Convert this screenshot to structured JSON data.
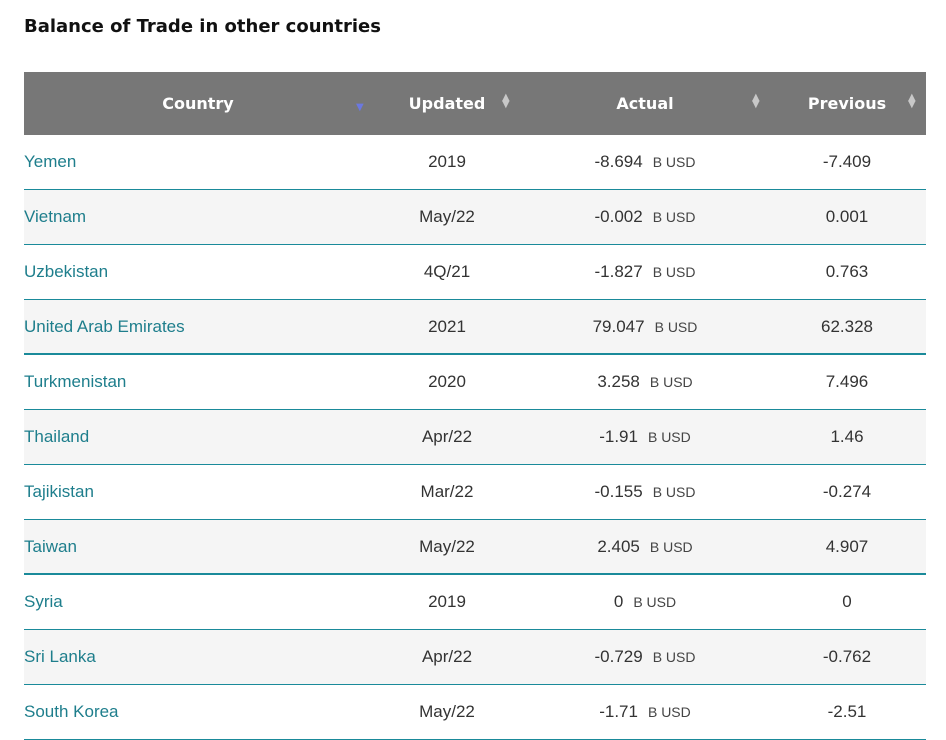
{
  "title": "Balance of Trade in other countries",
  "headers": {
    "country": "Country",
    "updated": "Updated",
    "actual": "Actual",
    "previous": "Previous"
  },
  "unit": "B USD",
  "rows": [
    {
      "country": "Yemen",
      "updated": "2019",
      "actual": "-8.694",
      "previous": "-7.409"
    },
    {
      "country": "Vietnam",
      "updated": "May/22",
      "actual": "-0.002",
      "previous": "0.001"
    },
    {
      "country": "Uzbekistan",
      "updated": "4Q/21",
      "actual": "-1.827",
      "previous": "0.763"
    },
    {
      "country": "United Arab Emirates",
      "updated": "2021",
      "actual": "79.047",
      "previous": "62.328"
    },
    {
      "country": "Turkmenistan",
      "updated": "2020",
      "actual": "3.258",
      "previous": "7.496"
    },
    {
      "country": "Thailand",
      "updated": "Apr/22",
      "actual": "-1.91",
      "previous": "1.46"
    },
    {
      "country": "Tajikistan",
      "updated": "Mar/22",
      "actual": "-0.155",
      "previous": "-0.274"
    },
    {
      "country": "Taiwan",
      "updated": "May/22",
      "actual": "2.405",
      "previous": "4.907"
    },
    {
      "country": "Syria",
      "updated": "2019",
      "actual": "0",
      "previous": "0"
    },
    {
      "country": "Sri Lanka",
      "updated": "Apr/22",
      "actual": "-0.729",
      "previous": "-0.762"
    },
    {
      "country": "South Korea",
      "updated": "May/22",
      "actual": "-1.71",
      "previous": "-2.51"
    }
  ]
}
